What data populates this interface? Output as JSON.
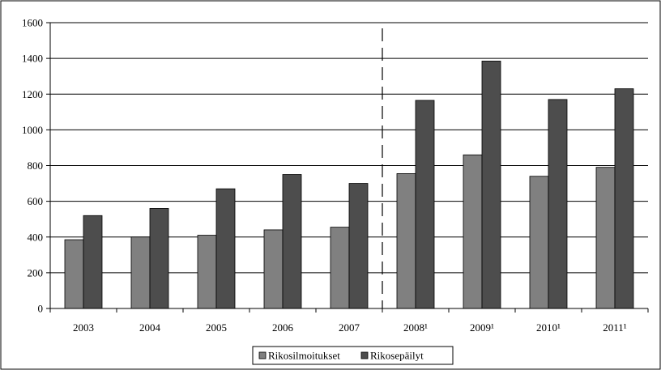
{
  "chart_data": {
    "type": "bar",
    "categories": [
      "2003",
      "2004",
      "2005",
      "2006",
      "2007",
      "2008¹",
      "2009¹",
      "2010¹",
      "2011¹"
    ],
    "series": [
      {
        "name": "Rikosilmoitukset",
        "color": "#808080",
        "values": [
          385,
          400,
          410,
          440,
          455,
          755,
          860,
          740,
          790
        ]
      },
      {
        "name": "Rikosepäilyt",
        "color": "#4d4d4d",
        "values": [
          520,
          560,
          670,
          750,
          700,
          1165,
          1385,
          1170,
          1230
        ]
      }
    ],
    "ylim": [
      0,
      1600
    ],
    "yticks": [
      0,
      200,
      400,
      600,
      800,
      1000,
      1200,
      1400,
      1600
    ],
    "grid": true,
    "divider_after_category": 4,
    "legend_position": "bottom",
    "title": "",
    "xlabel": "",
    "ylabel": ""
  }
}
